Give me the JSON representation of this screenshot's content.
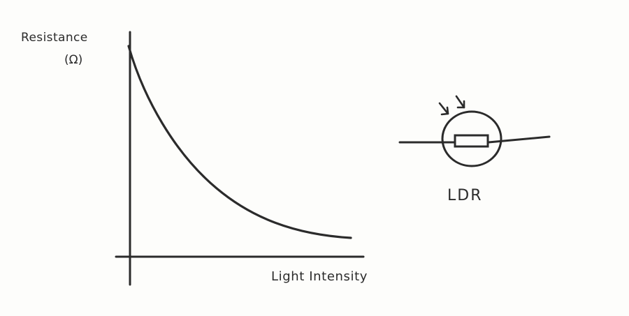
{
  "graph": {
    "y_label": "Resistance",
    "y_unit": "(Ω)",
    "x_label": "Light Intensity",
    "curve_type": "decreasing exponential-like curve"
  },
  "component": {
    "symbol_name": "light-dependent-resistor-symbol",
    "label": "LDR"
  },
  "colors": {
    "ink": "#2b2b2b",
    "paper": "#fdfdfb"
  }
}
